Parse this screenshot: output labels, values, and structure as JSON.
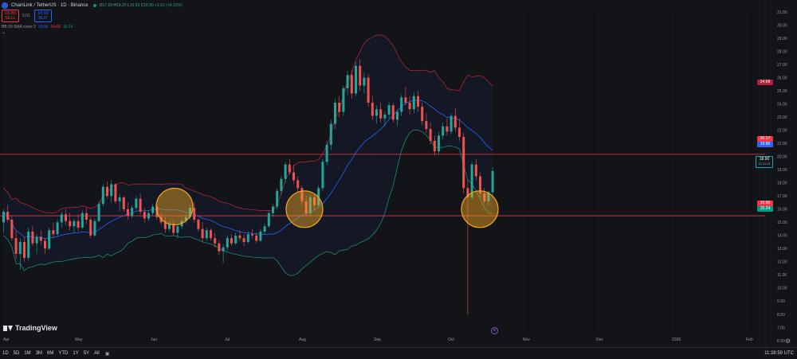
{
  "header": {
    "symbol": "ChainLink / TetherUS · 1D · Binance",
    "ohlc_o_label": "O",
    "ohlc_o": "17.29",
    "ohlc_h_label": "H",
    "ohlc_h": "19.20",
    "ohlc_l_label": "L",
    "ohlc_l": "16.93",
    "ohlc_c_label": "C",
    "ohlc_c": "18.90",
    "ohlc_change": "+1.61 (+9.31%)"
  },
  "trade": {
    "sell_price": "18.89",
    "sell_label": "SELL",
    "spread": "0.01",
    "buy_price": "18.90",
    "buy_label": "BUY"
  },
  "indicator": {
    "name": "BB 20 SMA close 2",
    "basis": "19.96",
    "upper": "24.68",
    "lower": "15.24"
  },
  "axis": {
    "y_ticks": [
      "31.00",
      "30.00",
      "29.00",
      "28.00",
      "27.00",
      "26.00",
      "25.00",
      "24.00",
      "23.00",
      "22.00",
      "21.00",
      "20.00",
      "19.00",
      "18.00",
      "17.00",
      "16.00",
      "15.00",
      "14.00",
      "13.00",
      "12.00",
      "11.00",
      "10.00",
      "9.00",
      "8.00",
      "7.00",
      "6.00"
    ],
    "x_ticks": [
      "Apr",
      "May",
      "Jun",
      "Jul",
      "Aug",
      "Sep",
      "Oct",
      "Nov",
      "Dec",
      "2026",
      "Feb"
    ]
  },
  "price_tags": {
    "upper": "24.68",
    "resistance": "20.17",
    "basis": "19.96",
    "last": "18.90",
    "countdown": "12:31:01",
    "support": "15.50",
    "lower": "15.24"
  },
  "levels": {
    "resistance": 20.17,
    "support": 15.5
  },
  "bottom": {
    "timeframes": [
      "1D",
      "5D",
      "1M",
      "3M",
      "6M",
      "YTD",
      "1Y",
      "5Y",
      "All"
    ],
    "clock": "11:28:59 UTC"
  },
  "brand": "TradingView",
  "colors": {
    "up": "#26a69a",
    "down": "#ef5350",
    "upper_band": "#b2223a",
    "basis": "#2962ff",
    "lower_band": "#1f8a6e",
    "level_line": "#f23645",
    "circle": "#f5a623"
  },
  "chart_data": {
    "type": "candlestick",
    "ylim": [
      6,
      31
    ],
    "highlights": [
      {
        "x": "2025-06-12",
        "y": 16.2
      },
      {
        "x": "2025-07-30",
        "y": 16.0
      },
      {
        "x": "2025-10-14",
        "y": 16.0
      }
    ],
    "candles": [
      [
        15.0,
        16.0,
        14.2,
        15.8
      ],
      [
        15.8,
        16.3,
        15.0,
        15.2
      ],
      [
        15.2,
        15.5,
        13.6,
        13.8
      ],
      [
        13.8,
        14.3,
        12.2,
        12.6
      ],
      [
        12.6,
        13.8,
        11.4,
        13.5
      ],
      [
        13.5,
        13.9,
        12.0,
        12.3
      ],
      [
        12.3,
        14.6,
        12.1,
        14.3
      ],
      [
        14.3,
        14.7,
        13.2,
        13.4
      ],
      [
        13.4,
        14.1,
        12.6,
        13.9
      ],
      [
        13.9,
        14.4,
        13.3,
        13.6
      ],
      [
        13.6,
        13.8,
        12.6,
        13.0
      ],
      [
        13.0,
        14.6,
        12.9,
        14.4
      ],
      [
        14.4,
        15.0,
        13.8,
        14.1
      ],
      [
        14.1,
        15.2,
        13.9,
        15.0
      ],
      [
        15.0,
        15.8,
        14.6,
        15.6
      ],
      [
        15.6,
        16.0,
        14.8,
        15.1
      ],
      [
        15.1,
        15.7,
        14.4,
        14.7
      ],
      [
        14.7,
        15.3,
        14.2,
        15.1
      ],
      [
        15.1,
        15.6,
        14.3,
        14.6
      ],
      [
        14.6,
        15.9,
        14.5,
        15.7
      ],
      [
        15.7,
        16.1,
        14.9,
        15.2
      ],
      [
        15.2,
        15.4,
        13.8,
        14.0
      ],
      [
        14.0,
        15.3,
        13.9,
        15.1
      ],
      [
        15.1,
        16.6,
        15.0,
        16.4
      ],
      [
        16.4,
        17.9,
        16.2,
        17.7
      ],
      [
        17.7,
        18.1,
        16.8,
        17.0
      ],
      [
        17.0,
        18.2,
        16.5,
        17.9
      ],
      [
        17.9,
        18.0,
        16.4,
        16.6
      ],
      [
        16.6,
        17.2,
        15.8,
        16.9
      ],
      [
        16.9,
        17.0,
        15.8,
        16.0
      ],
      [
        16.0,
        16.5,
        15.2,
        15.5
      ],
      [
        15.5,
        16.3,
        15.3,
        16.1
      ],
      [
        16.1,
        17.0,
        15.9,
        16.8
      ],
      [
        16.8,
        17.2,
        15.6,
        15.8
      ],
      [
        15.8,
        16.1,
        15.0,
        15.3
      ],
      [
        15.3,
        15.9,
        15.1,
        15.7
      ],
      [
        15.7,
        16.4,
        15.5,
        16.2
      ],
      [
        16.2,
        16.4,
        15.2,
        15.4
      ],
      [
        15.4,
        15.7,
        14.8,
        15.0
      ],
      [
        15.0,
        15.4,
        14.2,
        14.5
      ],
      [
        14.5,
        15.1,
        14.3,
        14.9
      ],
      [
        14.9,
        15.2,
        14.0,
        14.2
      ],
      [
        14.2,
        14.9,
        13.8,
        14.7
      ],
      [
        14.7,
        15.3,
        14.5,
        15.1
      ],
      [
        15.1,
        15.6,
        14.9,
        15.4
      ],
      [
        15.4,
        16.3,
        15.2,
        16.1
      ],
      [
        16.1,
        16.5,
        15.0,
        15.2
      ],
      [
        15.2,
        15.3,
        14.3,
        14.5
      ],
      [
        14.5,
        15.0,
        13.5,
        13.8
      ],
      [
        13.8,
        14.6,
        13.6,
        14.4
      ],
      [
        14.4,
        14.5,
        13.6,
        13.8
      ],
      [
        13.8,
        14.2,
        13.1,
        13.4
      ],
      [
        13.4,
        13.6,
        12.5,
        12.8
      ],
      [
        12.8,
        13.3,
        11.9,
        13.1
      ],
      [
        13.1,
        14.0,
        12.9,
        13.8
      ],
      [
        13.8,
        14.1,
        13.2,
        13.4
      ],
      [
        13.4,
        14.2,
        13.3,
        14.0
      ],
      [
        14.0,
        14.4,
        13.6,
        13.8
      ],
      [
        13.8,
        14.1,
        13.2,
        13.5
      ],
      [
        13.5,
        14.3,
        13.4,
        14.1
      ],
      [
        14.1,
        14.5,
        13.8,
        14.0
      ],
      [
        14.0,
        14.2,
        13.4,
        13.6
      ],
      [
        13.6,
        14.5,
        13.5,
        14.3
      ],
      [
        14.3,
        14.9,
        14.1,
        14.7
      ],
      [
        14.7,
        15.9,
        14.6,
        15.7
      ],
      [
        15.7,
        16.4,
        15.4,
        16.2
      ],
      [
        16.2,
        17.6,
        16.0,
        17.4
      ],
      [
        17.4,
        18.5,
        17.1,
        18.3
      ],
      [
        18.3,
        19.6,
        18.0,
        19.4
      ],
      [
        19.4,
        19.8,
        18.6,
        18.8
      ],
      [
        18.8,
        19.4,
        17.9,
        18.2
      ],
      [
        18.2,
        18.5,
        17.3,
        17.6
      ],
      [
        17.6,
        17.8,
        16.3,
        16.6
      ],
      [
        16.6,
        17.0,
        15.4,
        15.7
      ],
      [
        15.7,
        17.1,
        15.5,
        16.9
      ],
      [
        16.9,
        17.2,
        16.0,
        16.3
      ],
      [
        16.3,
        17.8,
        16.1,
        17.6
      ],
      [
        17.6,
        19.8,
        17.4,
        19.6
      ],
      [
        19.6,
        21.2,
        19.3,
        20.9
      ],
      [
        20.9,
        22.8,
        20.5,
        22.5
      ],
      [
        22.5,
        24.4,
        22.1,
        24.1
      ],
      [
        24.1,
        24.6,
        23.0,
        23.4
      ],
      [
        23.4,
        25.4,
        23.1,
        25.2
      ],
      [
        25.2,
        26.5,
        24.7,
        26.2
      ],
      [
        26.2,
        26.6,
        24.4,
        24.8
      ],
      [
        24.8,
        27.2,
        24.6,
        26.9
      ],
      [
        26.9,
        27.4,
        25.0,
        25.4
      ],
      [
        25.4,
        26.4,
        24.8,
        26.0
      ],
      [
        26.0,
        26.3,
        23.8,
        24.1
      ],
      [
        24.1,
        24.6,
        22.8,
        23.1
      ],
      [
        23.1,
        23.9,
        22.5,
        23.6
      ],
      [
        23.6,
        24.1,
        22.6,
        22.9
      ],
      [
        22.9,
        23.4,
        22.3,
        23.2
      ],
      [
        23.2,
        24.2,
        22.9,
        23.9
      ],
      [
        23.9,
        24.1,
        22.6,
        22.8
      ],
      [
        22.8,
        23.6,
        22.3,
        23.4
      ],
      [
        23.4,
        24.7,
        23.1,
        24.5
      ],
      [
        24.5,
        25.3,
        23.9,
        24.1
      ],
      [
        24.1,
        24.6,
        23.2,
        23.6
      ],
      [
        23.6,
        24.9,
        23.3,
        24.6
      ],
      [
        24.6,
        25.0,
        23.4,
        23.8
      ],
      [
        23.8,
        24.1,
        22.4,
        22.7
      ],
      [
        22.7,
        23.3,
        21.8,
        22.1
      ],
      [
        22.1,
        22.6,
        20.9,
        21.2
      ],
      [
        21.2,
        21.6,
        20.1,
        20.4
      ],
      [
        20.4,
        21.9,
        20.2,
        21.6
      ],
      [
        21.6,
        22.6,
        21.3,
        22.3
      ],
      [
        22.3,
        22.9,
        21.6,
        21.9
      ],
      [
        21.9,
        23.3,
        21.7,
        23.1
      ],
      [
        23.1,
        23.7,
        21.9,
        22.2
      ],
      [
        22.2,
        22.9,
        21.2,
        21.5
      ],
      [
        21.5,
        21.8,
        17.2,
        17.6
      ],
      [
        17.6,
        18.2,
        8.0,
        16.9
      ],
      [
        16.9,
        19.6,
        16.7,
        19.4
      ],
      [
        19.4,
        19.8,
        18.2,
        18.5
      ],
      [
        18.5,
        18.8,
        16.9,
        17.2
      ],
      [
        17.2,
        17.6,
        16.4,
        16.6
      ],
      [
        16.6,
        17.4,
        16.3,
        17.3
      ],
      [
        17.29,
        19.2,
        16.93,
        18.9
      ]
    ]
  }
}
